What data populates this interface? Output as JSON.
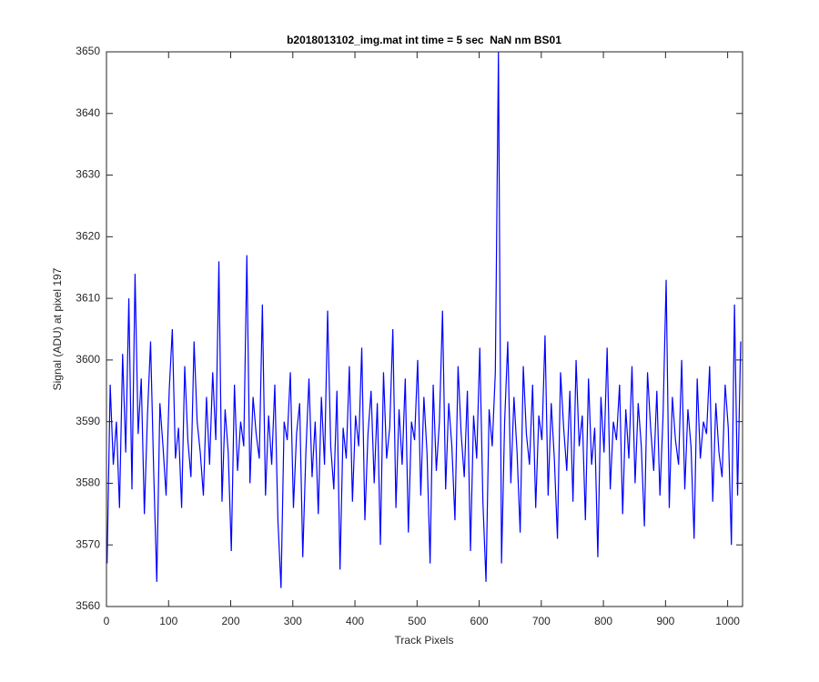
{
  "chart_data": {
    "type": "line",
    "title": "b2018013102_img.mat int time = 5 sec  NaN nm BS01",
    "xlabel": "Track Pixels",
    "ylabel": "Signal (ADU) at pixel 197",
    "xlim": [
      0,
      1024
    ],
    "ylim": [
      3560,
      3650
    ],
    "xticks": [
      0,
      100,
      200,
      300,
      400,
      500,
      600,
      700,
      800,
      900,
      1000
    ],
    "yticks": [
      3560,
      3570,
      3580,
      3590,
      3600,
      3610,
      3620,
      3630,
      3640,
      3650
    ],
    "x": [
      1,
      6,
      11,
      16,
      21,
      26,
      31,
      36,
      41,
      46,
      51,
      56,
      61,
      66,
      71,
      76,
      81,
      86,
      91,
      96,
      101,
      106,
      111,
      116,
      121,
      126,
      131,
      136,
      141,
      146,
      151,
      156,
      161,
      166,
      171,
      176,
      181,
      186,
      191,
      196,
      201,
      206,
      211,
      216,
      221,
      226,
      231,
      236,
      241,
      246,
      251,
      256,
      261,
      266,
      271,
      276,
      281,
      286,
      291,
      296,
      301,
      306,
      311,
      316,
      321,
      326,
      331,
      336,
      341,
      346,
      351,
      356,
      361,
      366,
      371,
      376,
      381,
      386,
      391,
      396,
      401,
      406,
      411,
      416,
      421,
      426,
      431,
      436,
      441,
      446,
      451,
      456,
      461,
      466,
      471,
      476,
      481,
      486,
      491,
      496,
      501,
      506,
      511,
      516,
      521,
      526,
      531,
      536,
      541,
      546,
      551,
      556,
      561,
      566,
      571,
      576,
      581,
      586,
      591,
      596,
      601,
      606,
      611,
      616,
      621,
      626,
      631,
      636,
      641,
      646,
      651,
      656,
      661,
      666,
      671,
      676,
      681,
      686,
      691,
      696,
      701,
      706,
      711,
      716,
      721,
      726,
      731,
      736,
      741,
      746,
      751,
      756,
      761,
      766,
      771,
      776,
      781,
      786,
      791,
      796,
      801,
      806,
      811,
      816,
      821,
      826,
      831,
      836,
      841,
      846,
      851,
      856,
      861,
      866,
      871,
      876,
      881,
      886,
      891,
      896,
      901,
      906,
      911,
      916,
      921,
      926,
      931,
      936,
      941,
      946,
      951,
      956,
      961,
      966,
      971,
      976,
      981,
      986,
      991,
      996,
      1001,
      1006,
      1011,
      1016,
      1021
    ],
    "series": [
      {
        "color": "#0000ff",
        "values": [
          3567,
          3596,
          3583,
          3590,
          3576,
          3601,
          3585,
          3610,
          3579,
          3614,
          3588,
          3597,
          3575,
          3591,
          3603,
          3582,
          3564,
          3593,
          3586,
          3578,
          3595,
          3605,
          3584,
          3589,
          3576,
          3599,
          3587,
          3581,
          3603,
          3590,
          3585,
          3578,
          3594,
          3583,
          3598,
          3587,
          3616,
          3577,
          3592,
          3585,
          3569,
          3596,
          3582,
          3590,
          3586,
          3617,
          3580,
          3594,
          3588,
          3584,
          3609,
          3578,
          3591,
          3583,
          3596,
          3574,
          3563,
          3590,
          3587,
          3598,
          3576,
          3588,
          3593,
          3568,
          3585,
          3597,
          3581,
          3590,
          3575,
          3594,
          3583,
          3608,
          3586,
          3579,
          3595,
          3566,
          3589,
          3584,
          3599,
          3577,
          3591,
          3586,
          3602,
          3574,
          3588,
          3595,
          3580,
          3593,
          3570,
          3598,
          3584,
          3589,
          3605,
          3576,
          3592,
          3583,
          3597,
          3572,
          3590,
          3587,
          3600,
          3578,
          3594,
          3585,
          3567,
          3596,
          3582,
          3590,
          3608,
          3579,
          3593,
          3586,
          3574,
          3599,
          3588,
          3581,
          3595,
          3569,
          3591,
          3584,
          3602,
          3577,
          3564,
          3592,
          3586,
          3598,
          3650,
          3567,
          3590,
          3603,
          3580,
          3594,
          3585,
          3572,
          3599,
          3588,
          3583,
          3596,
          3576,
          3591,
          3587,
          3604,
          3578,
          3593,
          3584,
          3571,
          3598,
          3589,
          3582,
          3595,
          3577,
          3600,
          3586,
          3591,
          3574,
          3597,
          3583,
          3589,
          3568,
          3594,
          3585,
          3602,
          3579,
          3590,
          3587,
          3596,
          3575,
          3592,
          3584,
          3599,
          3580,
          3593,
          3586,
          3573,
          3598,
          3589,
          3582,
          3595,
          3578,
          3591,
          3613,
          3576,
          3594,
          3587,
          3583,
          3600,
          3579,
          3592,
          3586,
          3571,
          3597,
          3584,
          3590,
          3588,
          3599,
          3577,
          3593,
          3585,
          3581,
          3596,
          3589,
          3570,
          3609,
          3578,
          3603
        ]
      }
    ]
  }
}
